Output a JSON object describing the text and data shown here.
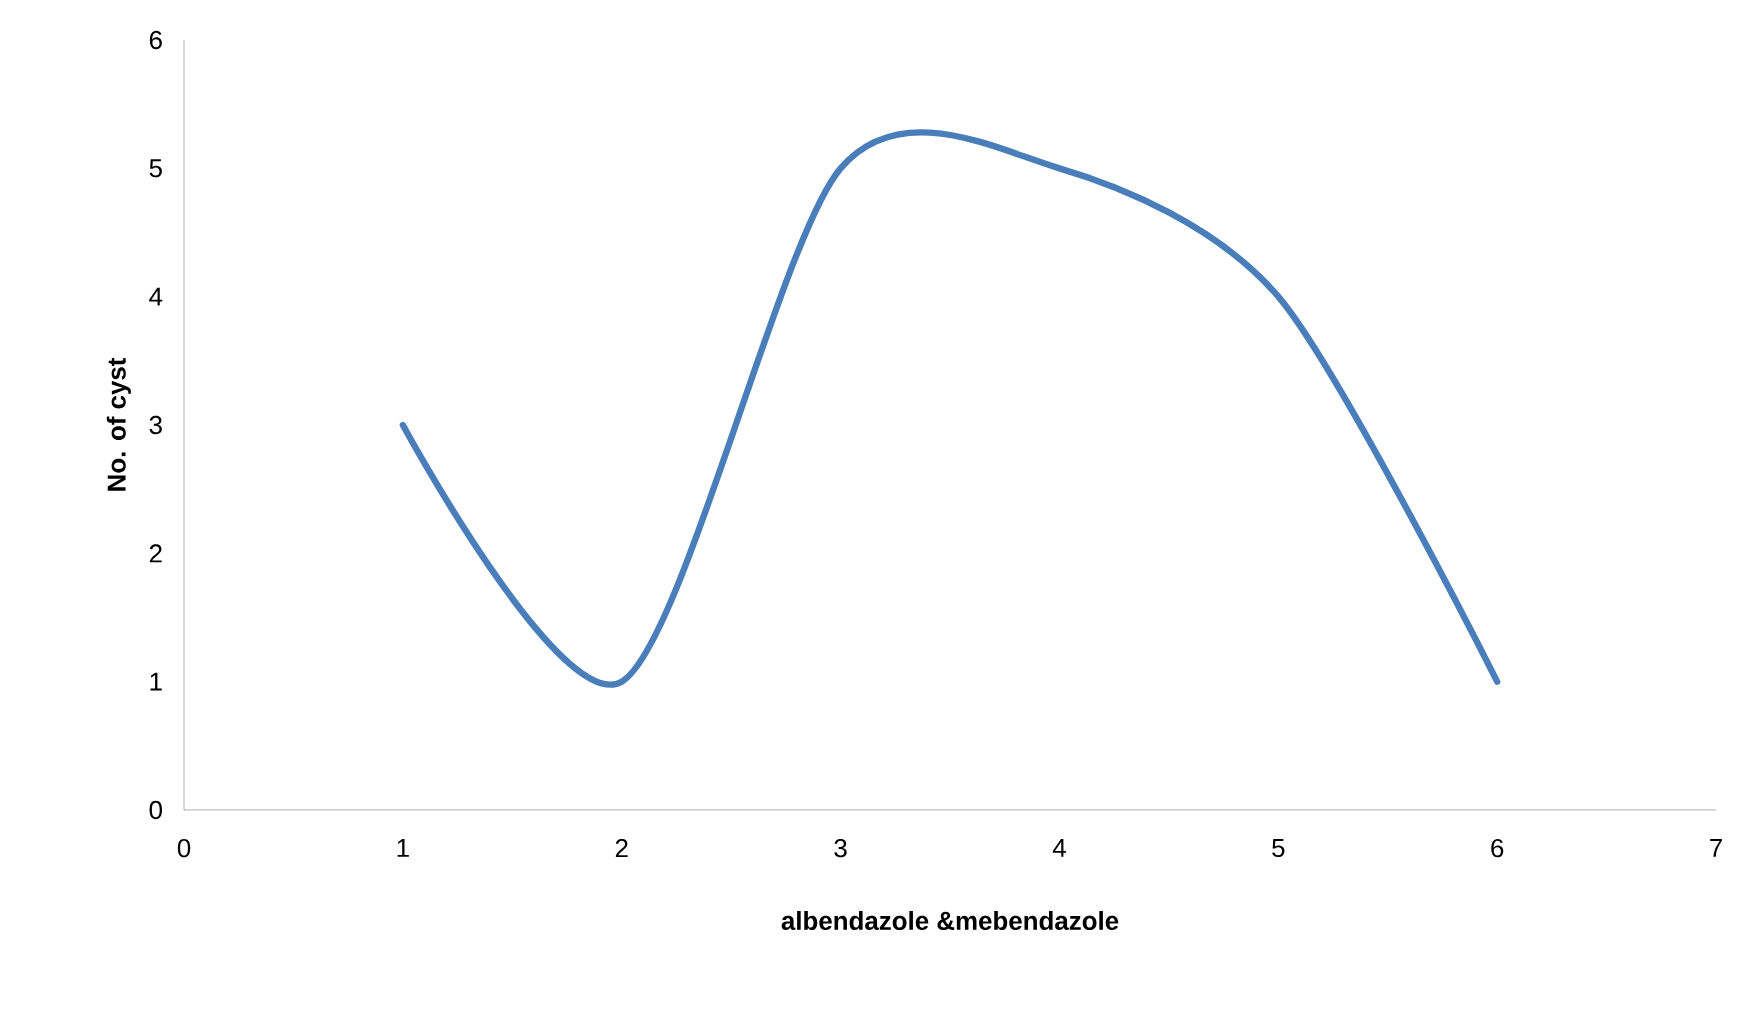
{
  "chart_data": {
    "type": "line",
    "xlabel": "albendazole &mebendazole",
    "ylabel": "No. of cyst",
    "x": [
      1,
      2,
      3,
      4,
      5,
      6
    ],
    "series": [
      {
        "color": "#4a7ebb",
        "values": [
          3,
          1,
          5,
          5,
          4,
          1
        ]
      }
    ],
    "xlim": [
      0,
      7
    ],
    "ylim": [
      0,
      6
    ],
    "xticks": [
      0,
      1,
      2,
      3,
      4,
      5,
      6,
      7
    ],
    "yticks": [
      0,
      1,
      2,
      3,
      4,
      5,
      6
    ]
  }
}
